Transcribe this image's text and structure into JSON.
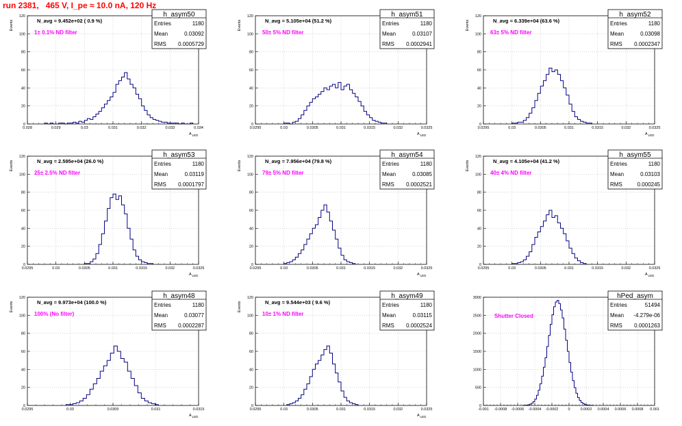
{
  "page_title": "run 2381,   465 V, I_pe ≈ 10.0 nA, 120 Hz",
  "chart_data": [
    {
      "type": "histogram",
      "name": "h_asym50",
      "navg": "N_avg = 9.452e+02 ( 0.9 %)",
      "filter": "1± 0.1% ND filter",
      "stats": {
        "entries": "1180",
        "mean": "0.03092",
        "rms": "0.0005729"
      },
      "ylabel": "Events",
      "xlabel": "A_LED",
      "xlim": [
        0.028,
        0.034
      ],
      "ylim": [
        0,
        120
      ],
      "xticks": [
        "0.028",
        "0.029",
        "0.03",
        "0.031",
        "0.032",
        "0.033",
        "0.034"
      ],
      "yticks": [
        "0",
        "20",
        "40",
        "60",
        "80",
        "100",
        "120"
      ],
      "grid": true,
      "bins": {
        "start": 0.0286,
        "width": 0.0001,
        "counts": [
          1,
          0,
          1,
          0,
          0,
          1,
          1,
          0,
          1,
          1,
          2,
          1,
          3,
          2,
          4,
          6,
          5,
          8,
          11,
          14,
          18,
          22,
          26,
          30,
          35,
          44,
          48,
          52,
          57,
          50,
          44,
          40,
          33,
          28,
          20,
          15,
          10,
          7,
          5,
          4,
          3,
          2,
          2,
          1,
          1,
          1,
          1,
          0,
          1,
          0,
          0,
          1
        ]
      }
    },
    {
      "type": "histogram",
      "name": "h_asym51",
      "navg": "N_avg = 5.105e+04 (51.2 %)",
      "filter": "50± 5% ND filter",
      "stats": {
        "entries": "1180",
        "mean": "0.03107",
        "rms": "0.0002941"
      },
      "ylabel": "Events",
      "xlabel": "A_LED",
      "xlim": [
        0.0295,
        0.0325
      ],
      "ylim": [
        0,
        120
      ],
      "xticks": [
        "0.0295",
        "0.03",
        "0.0305",
        "0.031",
        "0.0315",
        "0.032",
        "0.0325"
      ],
      "yticks": [
        "0",
        "20",
        "40",
        "60",
        "80",
        "100",
        "120"
      ],
      "grid": true,
      "bins": {
        "start": 0.03,
        "width": 5e-05,
        "counts": [
          1,
          1,
          0,
          2,
          3,
          6,
          10,
          15,
          20,
          24,
          28,
          30,
          33,
          36,
          40,
          38,
          42,
          44,
          40,
          46,
          38,
          42,
          44,
          38,
          34,
          30,
          25,
          20,
          14,
          10,
          7,
          4,
          3,
          2,
          1,
          1
        ]
      }
    },
    {
      "type": "histogram",
      "name": "h_asym52",
      "navg": "N_avg = 6.339e+04 (63.6 %)",
      "filter": "63± 5% ND filter",
      "stats": {
        "entries": "1180",
        "mean": "0.03098",
        "rms": "0.0002347"
      },
      "ylabel": "Events",
      "xlabel": "A_LED",
      "xlim": [
        0.0295,
        0.0325
      ],
      "ylim": [
        0,
        120
      ],
      "xticks": [
        "0.0295",
        "0.03",
        "0.0305",
        "0.031",
        "0.0315",
        "0.032",
        "0.0325"
      ],
      "yticks": [
        "0",
        "20",
        "40",
        "60",
        "80",
        "100",
        "120"
      ],
      "grid": true,
      "bins": {
        "start": 0.03,
        "width": 5e-05,
        "counts": [
          1,
          1,
          2,
          2,
          4,
          7,
          12,
          18,
          26,
          34,
          42,
          48,
          55,
          62,
          58,
          60,
          55,
          48,
          40,
          32,
          22,
          14,
          8,
          5,
          3,
          2,
          1,
          1
        ]
      }
    },
    {
      "type": "histogram",
      "name": "h_asym53",
      "navg": "N_avg = 2.595e+04 (26.0 %)",
      "filter": "25± 2.5% ND filter",
      "stats": {
        "entries": "1180",
        "mean": "0.03119",
        "rms": "0.0001797"
      },
      "ylabel": "Events",
      "xlabel": "A_LED",
      "xlim": [
        0.0295,
        0.0325
      ],
      "ylim": [
        0,
        120
      ],
      "xticks": [
        "0.0295",
        "0.03",
        "0.0305",
        "0.031",
        "0.0315",
        "0.032",
        "0.0325"
      ],
      "yticks": [
        "0",
        "20",
        "40",
        "60",
        "80",
        "100",
        "120"
      ],
      "grid": true,
      "bins": {
        "start": 0.0305,
        "width": 5e-05,
        "counts": [
          1,
          1,
          3,
          6,
          12,
          22,
          34,
          48,
          62,
          74,
          78,
          72,
          76,
          66,
          56,
          40,
          28,
          16,
          9,
          5,
          3,
          2,
          1,
          1
        ]
      }
    },
    {
      "type": "histogram",
      "name": "h_asym54",
      "navg": "N_avg = 7.956e+04 (79.8 %)",
      "filter": "79± 5% ND filter",
      "stats": {
        "entries": "1180",
        "mean": "0.03085",
        "rms": "0.0002521"
      },
      "ylabel": "Events",
      "xlabel": "A_LED",
      "xlim": [
        0.0295,
        0.0325
      ],
      "ylim": [
        0,
        120
      ],
      "xticks": [
        "0.0295",
        "0.03",
        "0.0305",
        "0.031",
        "0.0315",
        "0.032",
        "0.0325"
      ],
      "yticks": [
        "0",
        "20",
        "40",
        "60",
        "80",
        "100",
        "120"
      ],
      "grid": true,
      "bins": {
        "start": 0.03,
        "width": 5e-05,
        "counts": [
          1,
          2,
          3,
          5,
          8,
          12,
          16,
          22,
          28,
          34,
          40,
          44,
          52,
          60,
          66,
          58,
          48,
          38,
          28,
          18,
          10,
          5,
          3,
          2,
          1
        ]
      }
    },
    {
      "type": "histogram",
      "name": "h_asym55",
      "navg": "N_avg = 4.105e+04 (41.2 %)",
      "filter": "40± 4% ND filter",
      "stats": {
        "entries": "1180",
        "mean": "0.03103",
        "rms": "0.000245"
      },
      "ylabel": "Events",
      "xlabel": "A_LED",
      "xlim": [
        0.0295,
        0.0325
      ],
      "ylim": [
        0,
        120
      ],
      "xticks": [
        "0.0295",
        "0.03",
        "0.0305",
        "0.031",
        "0.0315",
        "0.032",
        "0.0325"
      ],
      "yticks": [
        "0",
        "20",
        "40",
        "60",
        "80",
        "100",
        "120"
      ],
      "grid": true,
      "bins": {
        "start": 0.03,
        "width": 5e-05,
        "counts": [
          1,
          1,
          2,
          3,
          5,
          9,
          14,
          22,
          30,
          36,
          42,
          48,
          55,
          60,
          52,
          54,
          46,
          40,
          34,
          26,
          18,
          12,
          7,
          4,
          2,
          1
        ]
      }
    },
    {
      "type": "histogram",
      "name": "h_asym48",
      "navg": "N_avg = 9.973e+04 (100.0 %)",
      "filter": "100% (No filter)",
      "stats": {
        "entries": "1180",
        "mean": "0.03077",
        "rms": "0.0002287"
      },
      "ylabel": "Events",
      "xlabel": "A_LED",
      "xlim": [
        0.0295,
        0.0315
      ],
      "ylim": [
        0,
        120
      ],
      "xticks": [
        "0.0295",
        "0.03",
        "0.0305",
        "0.031",
        "0.0315"
      ],
      "yticks": [
        "0",
        "20",
        "40",
        "60",
        "80",
        "100",
        "120"
      ],
      "grid": true,
      "bins": {
        "start": 0.02995,
        "width": 4e-05,
        "counts": [
          1,
          1,
          2,
          3,
          5,
          8,
          12,
          18,
          24,
          30,
          38,
          44,
          50,
          58,
          66,
          60,
          52,
          48,
          38,
          30,
          22,
          14,
          8,
          5,
          3,
          2,
          1
        ]
      }
    },
    {
      "type": "histogram",
      "name": "h_asym49",
      "navg": "N_avg = 9.544e+03 ( 9.6 %)",
      "filter": "10± 1% ND filter",
      "stats": {
        "entries": "1180",
        "mean": "0.03115",
        "rms": "0.0002524"
      },
      "ylabel": "Events",
      "xlabel": "A_LED",
      "xlim": [
        0.0295,
        0.0325
      ],
      "ylim": [
        0,
        120
      ],
      "xticks": [
        "0.0295",
        "0.03",
        "0.0305",
        "0.031",
        "0.0315",
        "0.032",
        "0.0325"
      ],
      "yticks": [
        "0",
        "20",
        "40",
        "60",
        "80",
        "100",
        "120"
      ],
      "grid": true,
      "bins": {
        "start": 0.03005,
        "width": 5e-05,
        "counts": [
          1,
          2,
          3,
          5,
          8,
          12,
          18,
          24,
          32,
          40,
          46,
          50,
          56,
          62,
          66,
          58,
          46,
          36,
          26,
          16,
          9,
          5,
          3,
          2,
          1
        ]
      }
    },
    {
      "type": "histogram",
      "name": "hPed_asym",
      "navg": "",
      "filter": "Shutter Closed",
      "stats": {
        "entries": "51494",
        "mean": "-4.279e-06",
        "rms": "0.0001263"
      },
      "ylabel": "",
      "xlabel": "",
      "xlim": [
        -0.001,
        0.001
      ],
      "ylim": [
        0,
        3400
      ],
      "xticks": [
        "-0.001",
        "-0.0008",
        "-0.0006",
        "-0.0004",
        "-0.0002",
        "0",
        "0.0002",
        "0.0004",
        "0.0006",
        "0.0008",
        "0.001"
      ],
      "yticks": [
        "0",
        "500",
        "1000",
        "1500",
        "2000",
        "2500",
        "3000"
      ],
      "grid": true,
      "bins": {
        "start": -0.00054,
        "width": 2e-05,
        "counts": [
          2,
          5,
          10,
          20,
          40,
          70,
          120,
          200,
          320,
          480,
          680,
          920,
          1200,
          1500,
          1850,
          2200,
          2550,
          2850,
          3100,
          3250,
          3300,
          3200,
          3000,
          2750,
          2400,
          2050,
          1700,
          1350,
          1050,
          780,
          560,
          380,
          250,
          160,
          95,
          55,
          30,
          15,
          8,
          4,
          2
        ]
      }
    }
  ]
}
